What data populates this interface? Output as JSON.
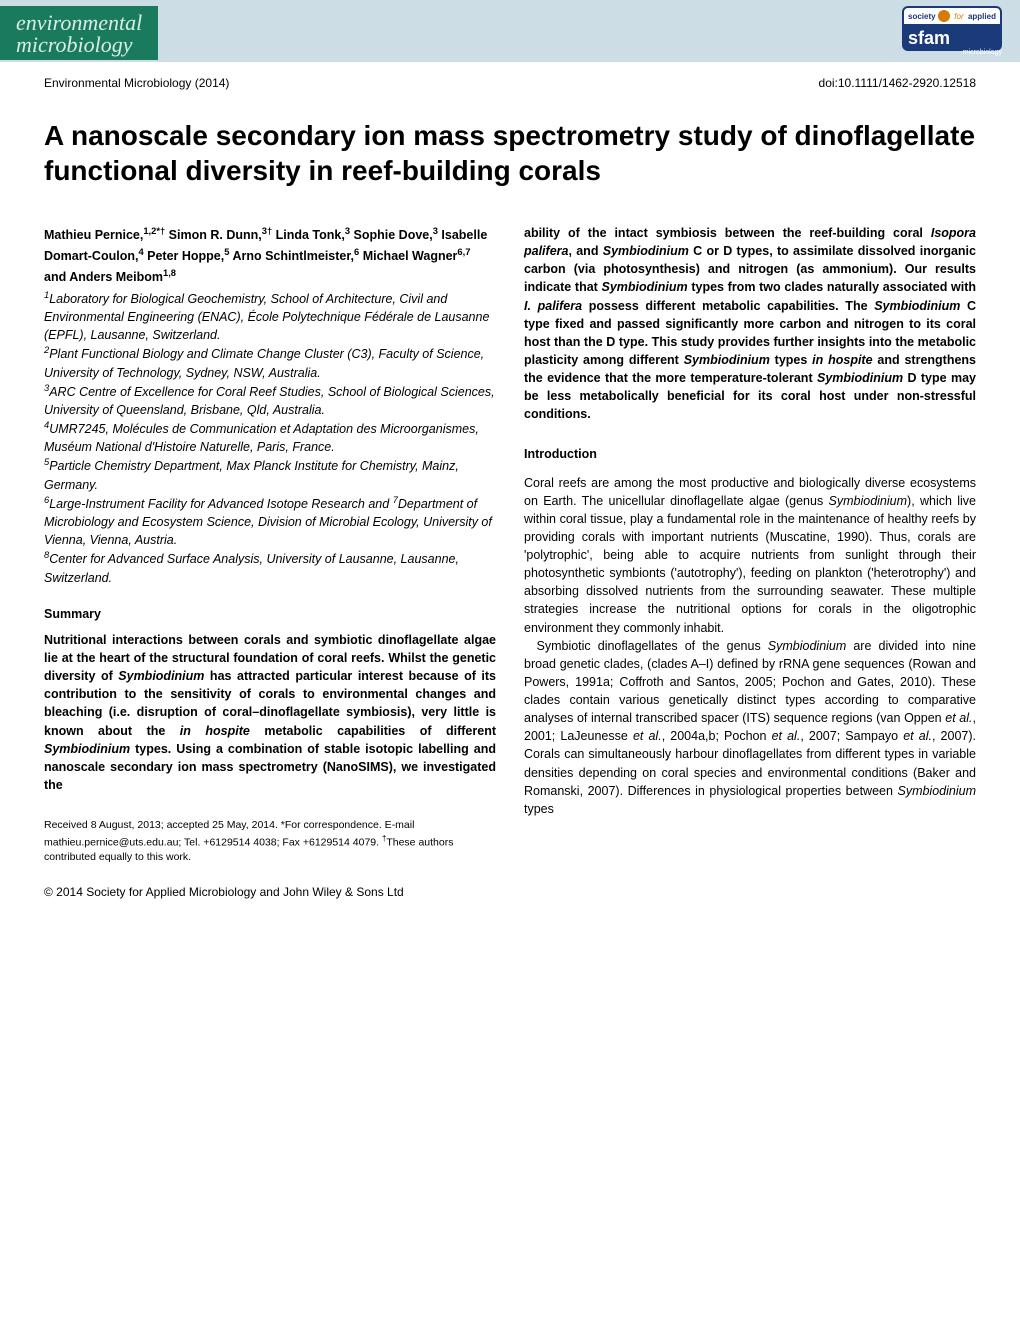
{
  "header": {
    "journal_line1": "environmental",
    "journal_line2": "microbiology",
    "banner_bg": "#1a7a5e",
    "banner_text_color": "#d9ede4",
    "bar_bg": "#ccdde6",
    "logo": {
      "society": "society",
      "for": "for",
      "applied": "applied",
      "sfam": "sfam",
      "sub": "microbiology",
      "blue": "#1a3a7a",
      "orange": "#d97a00"
    }
  },
  "meta": {
    "journal_year": "Environmental Microbiology (2014)",
    "doi": "doi:10.1111/1462-2920.12518"
  },
  "title": "A nanoscale secondary ion mass spectrometry study of dinoflagellate functional diversity in reef-building corals",
  "authors_html": "Mathieu Pernice,<sup>1,2*†</sup> Simon R. Dunn,<sup>3†</sup> Linda Tonk,<sup>3</sup> Sophie Dove,<sup>3</sup> Isabelle Domart-Coulon,<sup>4</sup> Peter Hoppe,<sup>5</sup> Arno Schintlmeister,<sup>6</sup> Michael Wagner<sup>6,7</sup> and Anders Meibom<sup>1,8</sup>",
  "affiliations": [
    "<sup>1</sup>Laboratory for Biological Geochemistry, School of Architecture, Civil and Environmental Engineering (ENAC), École Polytechnique Fédérale de Lausanne (EPFL), Lausanne, Switzerland.",
    "<sup>2</sup>Plant Functional Biology and Climate Change Cluster (C3), Faculty of Science, University of Technology, Sydney, NSW, Australia.",
    "<sup>3</sup>ARC Centre of Excellence for Coral Reef Studies, School of Biological Sciences, University of Queensland, Brisbane, Qld, Australia.",
    "<sup>4</sup>UMR7245, Molécules de Communication et Adaptation des Microorganismes, Muséum National d'Histoire Naturelle, Paris, France.",
    "<sup>5</sup>Particle Chemistry Department, Max Planck Institute for Chemistry, Mainz, Germany.",
    "<sup>6</sup>Large-Instrument Facility for Advanced Isotope Research and <sup>7</sup>Department of Microbiology and Ecosystem Science, Division of Microbial Ecology, University of Vienna, Vienna, Austria.",
    "<sup>8</sup>Center for Advanced Surface Analysis, University of Lausanne, Lausanne, Switzerland."
  ],
  "summary": {
    "heading": "Summary",
    "body": "Nutritional interactions between corals and symbiotic dinoflagellate algae lie at the heart of the structural foundation of coral reefs. Whilst the genetic diversity of <i>Symbiodinium</i> has attracted particular interest because of its contribution to the sensitivity of corals to environmental changes and bleaching (i.e. disruption of coral–dinoflagellate symbiosis), very little is known about the <i>in hospite</i> metabolic capabilities of different <i>Symbiodinium</i> types. Using a combination of stable isotopic labelling and nanoscale secondary ion mass spectrometry (NanoSIMS), we investigated the"
  },
  "abstract_cont": "ability of the intact symbiosis between the reef-building coral <i>Isopora palifera</i>, and <i>Symbiodinium</i> C or D types, to assimilate dissolved inorganic carbon (via photosynthesis) and nitrogen (as ammonium). Our results indicate that <i>Symbiodinium</i> types from two clades naturally associated with <i>I. palifera</i> possess different metabolic capabilities. The <i>Symbiodinium</i> C type fixed and passed significantly more carbon and nitrogen to its coral host than the D type. This study provides further insights into the metabolic plasticity among different <i>Symbiodinium</i> types <i>in hospite</i> and strengthens the evidence that the more temperature-tolerant <i>Symbiodinium</i> D type may be less metabolically beneficial for its coral host under non-stressful conditions.",
  "intro": {
    "heading": "Introduction",
    "paragraphs": [
      "Coral reefs are among the most productive and biologically diverse ecosystems on Earth. The unicellular dinoflagellate algae (genus <i>Symbiodinium</i>), which live within coral tissue, play a fundamental role in the maintenance of healthy reefs by providing corals with important nutrients (Muscatine, 1990). Thus, corals are 'polytrophic', being able to acquire nutrients from sunlight through their photosynthetic symbionts ('autotrophy'), feeding on plankton ('heterotrophy') and absorbing dissolved nutrients from the surrounding seawater. These multiple strategies increase the nutritional options for corals in the oligotrophic environment they commonly inhabit.",
      "Symbiotic dinoflagellates of the genus <i>Symbiodinium</i> are divided into nine broad genetic clades, (clades A–I) defined by rRNA gene sequences (Rowan and Powers, 1991a; Coffroth and Santos, 2005; Pochon and Gates, 2010). These clades contain various genetically distinct types according to comparative analyses of internal transcribed spacer (ITS) sequence regions (van Oppen <i>et al.</i>, 2001; LaJeunesse <i>et al.</i>, 2004a,b; Pochon <i>et al.</i>, 2007; Sampayo <i>et al.</i>, 2007). Corals can simultaneously harbour dinoflagellates from different types in variable densities depending on coral species and environmental conditions (Baker and Romanski, 2007). Differences in physiological properties between <i>Symbiodinium</i> types"
    ]
  },
  "footnote": "Received 8 August, 2013; accepted 25 May, 2014. *For correspondence. E-mail mathieu.pernice@uts.edu.au; Tel. +6129514 4038; Fax +6129514 4079. <sup>†</sup>These authors contributed equally to this work.",
  "copyright": "© 2014 Society for Applied Microbiology and John Wiley & Sons Ltd"
}
